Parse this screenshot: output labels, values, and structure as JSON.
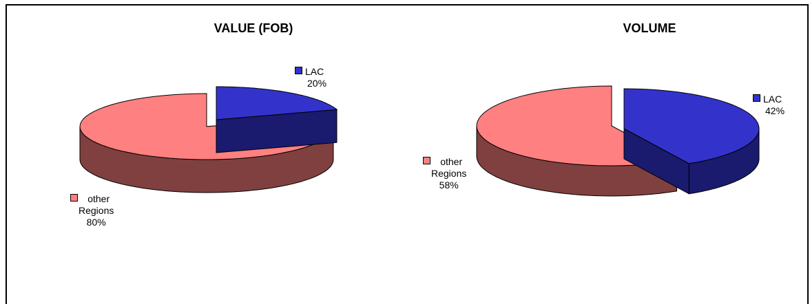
{
  "charts": [
    {
      "title": "VALUE (FOB)",
      "chart_data": {
        "type": "pie",
        "title": "VALUE (FOB)",
        "categories": [
          "LAC",
          "other Regions"
        ],
        "values": [
          20,
          80
        ],
        "unit": "%"
      },
      "slices": [
        {
          "name_line1": "LAC",
          "name_line2": "",
          "pct": "20%",
          "color": "#3333cc",
          "side": "#1a1a6e"
        },
        {
          "name_line1": "other",
          "name_line2": "Regions",
          "pct": "80%",
          "color": "#ff8080",
          "side": "#804040"
        }
      ]
    },
    {
      "title": "VOLUME",
      "chart_data": {
        "type": "pie",
        "title": "VOLUME",
        "categories": [
          "LAC",
          "other Regions"
        ],
        "values": [
          42,
          58
        ],
        "unit": "%"
      },
      "slices": [
        {
          "name_line1": "LAC",
          "name_line2": "",
          "pct": "42%",
          "color": "#3333cc",
          "side": "#1a1a6e"
        },
        {
          "name_line1": "other",
          "name_line2": "Regions",
          "pct": "58%",
          "color": "#ff8080",
          "side": "#804040"
        }
      ]
    }
  ]
}
